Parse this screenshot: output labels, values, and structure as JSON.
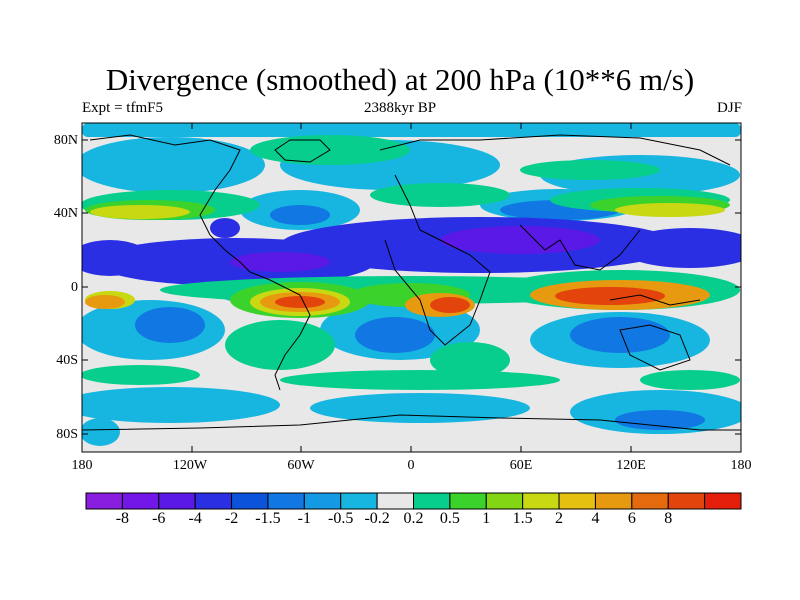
{
  "title": "Divergence (smoothed) at 200 hPa (10**6 m/s)",
  "experiment_label": "Expt = tfmF5",
  "period_label": "2388kyr BP",
  "season_label": "DJF",
  "lat_ticks": [
    "80N",
    "40N",
    "0",
    "40S",
    "80S"
  ],
  "lon_ticks": [
    "180",
    "120W",
    "60W",
    "0",
    "60E",
    "120E",
    "180"
  ],
  "colorbar": {
    "colors": [
      "#8a1ee0",
      "#7316e8",
      "#5a19e6",
      "#2b2fe4",
      "#0b53da",
      "#1177e3",
      "#1499e4",
      "#16b6e1",
      "#e8e8e8",
      "#07ce8c",
      "#3cd22c",
      "#82d614",
      "#c8d812",
      "#e6c010",
      "#e79a10",
      "#e56a0e",
      "#e3440c",
      "#e31f0b"
    ],
    "labels": [
      "-8",
      "-6",
      "-4",
      "-2",
      "-1.5",
      "-1",
      "-0.5",
      "-0.2",
      "0.2",
      "0.5",
      "1",
      "1.5",
      "2",
      "4",
      "6",
      "8"
    ]
  },
  "map_colors": {
    "background": "#e8e8e8",
    "strong_convergence": "#5a19e6",
    "convergence": "#2b2fe4",
    "moderate_convergence": "#1177e3",
    "weak_convergence": "#16b6e1",
    "weak_divergence": "#07ce8c",
    "moderate_divergence": "#3cd22c",
    "divergence": "#c8d812",
    "strong_divergence": "#e79a10",
    "very_strong_divergence": "#e3440c",
    "coastline": "#000000"
  }
}
